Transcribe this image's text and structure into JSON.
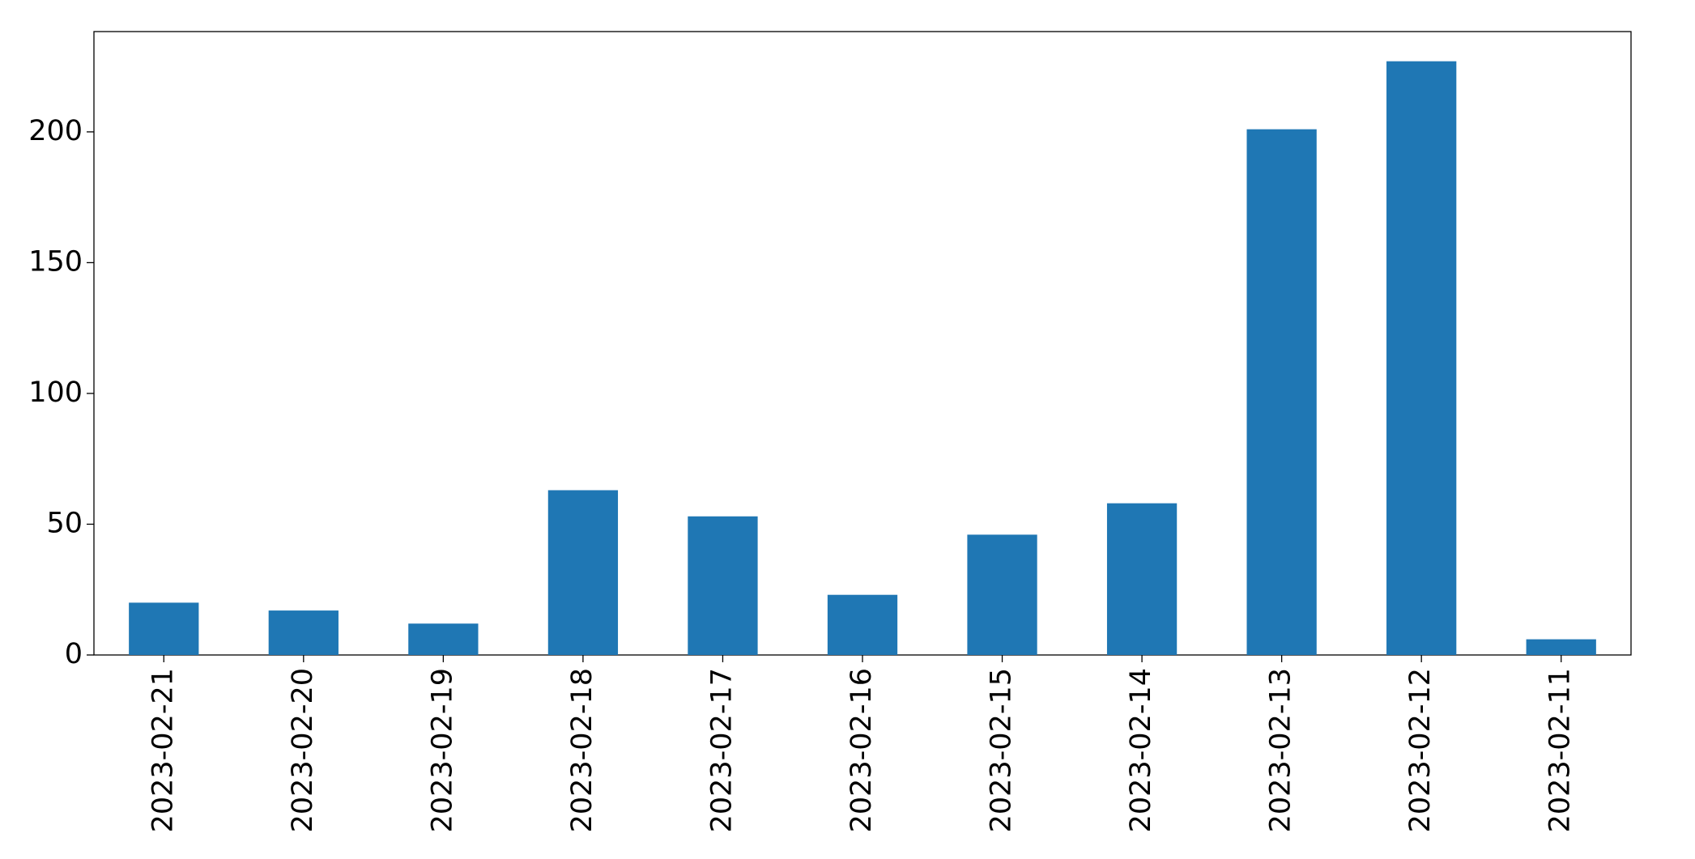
{
  "chart_data": {
    "type": "bar",
    "categories": [
      "2023-02-21",
      "2023-02-20",
      "2023-02-19",
      "2023-02-18",
      "2023-02-17",
      "2023-02-16",
      "2023-02-15",
      "2023-02-14",
      "2023-02-13",
      "2023-02-12",
      "2023-02-11"
    ],
    "values": [
      20,
      17,
      12,
      63,
      53,
      23,
      46,
      58,
      201,
      227,
      6
    ],
    "color": "#1f77b4",
    "ylim": [
      0,
      238.35
    ],
    "yticks": [
      0,
      50,
      100,
      150,
      200
    ],
    "grid": false
  }
}
